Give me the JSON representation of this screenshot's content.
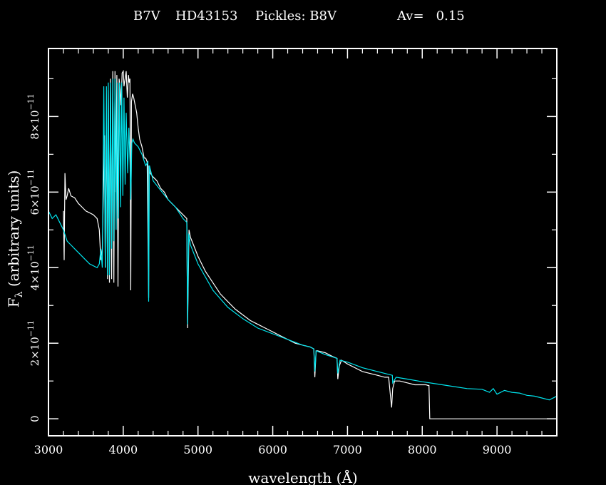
{
  "chart_data": {
    "type": "line",
    "title_parts": {
      "type": "B7V",
      "star": "HD43153",
      "pickles": "Pickles: B8V",
      "av": "Av=   0.15"
    },
    "xlabel": "wavelength (Å)",
    "ylabel_main": "F",
    "ylabel_sub": "λ",
    "ylabel_rest": " (arbitrary units)",
    "xlim": [
      3000,
      9800
    ],
    "ylim": [
      -4.5e-12,
      9.8e-11
    ],
    "x_ticks": [
      {
        "value": 3000,
        "label": "3000"
      },
      {
        "value": 4000,
        "label": "4000"
      },
      {
        "value": 5000,
        "label": "5000"
      },
      {
        "value": 6000,
        "label": "6000"
      },
      {
        "value": 7000,
        "label": "7000"
      },
      {
        "value": 8000,
        "label": "8000"
      },
      {
        "value": 9000,
        "label": "9000"
      }
    ],
    "y_ticks": [
      {
        "value": 0,
        "mantissa": "0",
        "exp": ""
      },
      {
        "value": 2e-11,
        "mantissa": "2×10",
        "exp": "−11"
      },
      {
        "value": 4e-11,
        "mantissa": "4×10",
        "exp": "−11"
      },
      {
        "value": 6e-11,
        "mantissa": "6×10",
        "exp": "−11"
      },
      {
        "value": 8e-11,
        "mantissa": "8×10",
        "exp": "−11"
      }
    ],
    "series": [
      {
        "color": "#ffffff",
        "x": [
          3200,
          3210,
          3220,
          3235,
          3250,
          3270,
          3300,
          3350,
          3400,
          3450,
          3500,
          3550,
          3600,
          3650,
          3680,
          3700,
          3720,
          3750,
          3760,
          3775,
          3790,
          3800,
          3815,
          3830,
          3845,
          3860,
          3875,
          3890,
          3900,
          3915,
          3930,
          3945,
          3960,
          3970,
          3985,
          4000,
          4010,
          4025,
          4040,
          4055,
          4070,
          4080,
          4090,
          4101,
          4110,
          4125,
          4140,
          4160,
          4180,
          4200,
          4220,
          4250,
          4280,
          4300,
          4320,
          4340,
          4345,
          4360,
          4400,
          4450,
          4500,
          4550,
          4600,
          4650,
          4700,
          4750,
          4800,
          4850,
          4861,
          4880,
          4900,
          4950,
          5000,
          5100,
          5200,
          5300,
          5400,
          5500,
          5600,
          5700,
          5800,
          5900,
          6000,
          6100,
          6200,
          6300,
          6400,
          6500,
          6550,
          6563,
          6580,
          6600,
          6700,
          6800,
          6860,
          6870,
          6890,
          6920,
          7000,
          7100,
          7200,
          7300,
          7400,
          7500,
          7550,
          7590,
          7605,
          7630,
          7700,
          7800,
          7900,
          8000,
          8050,
          8080,
          8090,
          8100,
          9000,
          9800
        ],
        "y": [
          5.5e-11,
          4.2e-11,
          6.5e-11,
          5.8e-11,
          5.9e-11,
          6.1e-11,
          5.9e-11,
          5.85e-11,
          5.7e-11,
          5.6e-11,
          5.5e-11,
          5.45e-11,
          5.4e-11,
          5.3e-11,
          5e-11,
          4.2e-11,
          4.5e-11,
          7.5e-11,
          4e-11,
          8.2e-11,
          3.7e-11,
          8.7e-11,
          3.6e-11,
          9e-11,
          3.7e-11,
          9.2e-11,
          3.6e-11,
          9.2e-11,
          6e-11,
          9.1e-11,
          3.5e-11,
          9e-11,
          8.7e-11,
          8.3e-11,
          9.15e-11,
          9.2e-11,
          8.8e-11,
          9e-11,
          9.2e-11,
          8.5e-11,
          9.1e-11,
          8.9e-11,
          9e-11,
          3.4e-11,
          8.4e-11,
          8.6e-11,
          8.5e-11,
          8.3e-11,
          8.1e-11,
          7.7e-11,
          7.4e-11,
          7.2e-11,
          6.9e-11,
          6.9e-11,
          6.8e-11,
          3.2e-11,
          6.7e-11,
          6.5e-11,
          6.4e-11,
          6.3e-11,
          6.1e-11,
          6e-11,
          5.8e-11,
          5.7e-11,
          5.6e-11,
          5.5e-11,
          5.4e-11,
          5.3e-11,
          2.4e-11,
          5e-11,
          4.8e-11,
          4.55e-11,
          4.3e-11,
          3.9e-11,
          3.6e-11,
          3.3e-11,
          3.1e-11,
          2.9e-11,
          2.75e-11,
          2.6e-11,
          2.5e-11,
          2.4e-11,
          2.3e-11,
          2.2e-11,
          2.1e-11,
          2e-11,
          1.95e-11,
          1.9e-11,
          1.85e-11,
          1.1e-11,
          1.8e-11,
          1.8e-11,
          1.75e-11,
          1.65e-11,
          1.6e-11,
          1.05e-11,
          1.4e-11,
          1.55e-11,
          1.45e-11,
          1.35e-11,
          1.25e-11,
          1.2e-11,
          1.15e-11,
          1.1e-11,
          1.1e-11,
          3e-12,
          8e-12,
          1e-11,
          1e-11,
          9.5e-12,
          9e-12,
          9e-12,
          9e-12,
          8.8e-12,
          8.8e-12,
          0.0,
          0.0,
          0.0
        ]
      },
      {
        "color": "#00e5ee",
        "x": [
          3000,
          3050,
          3100,
          3150,
          3200,
          3250,
          3300,
          3350,
          3400,
          3450,
          3500,
          3550,
          3600,
          3650,
          3680,
          3700,
          3720,
          3740,
          3760,
          3775,
          3790,
          3800,
          3815,
          3830,
          3845,
          3860,
          3875,
          3890,
          3905,
          3920,
          3935,
          3950,
          3965,
          3980,
          3995,
          4010,
          4025,
          4040,
          4060,
          4075,
          4090,
          4101,
          4115,
          4130,
          4150,
          4200,
          4250,
          4300,
          4330,
          4340,
          4350,
          4400,
          4500,
          4600,
          4700,
          4800,
          4850,
          4861,
          4875,
          4900,
          5000,
          5200,
          5400,
          5600,
          5800,
          6000,
          6200,
          6400,
          6500,
          6550,
          6563,
          6580,
          6700,
          6860,
          6870,
          6900,
          7000,
          7200,
          7400,
          7600,
          7605,
          7650,
          7800,
          8000,
          8200,
          8400,
          8600,
          8800,
          8900,
          8950,
          9000,
          9100,
          9200,
          9300,
          9400,
          9500,
          9600,
          9700,
          9800
        ],
        "y": [
          5.5e-11,
          5.3e-11,
          5.4e-11,
          5.2e-11,
          5e-11,
          4.7e-11,
          4.6e-11,
          4.5e-11,
          4.4e-11,
          4.3e-11,
          4.2e-11,
          4.1e-11,
          4.05e-11,
          4e-11,
          4.1e-11,
          4.5e-11,
          4e-11,
          8.8e-11,
          4e-11,
          8.8e-11,
          3.8e-11,
          8.9e-11,
          3.8e-11,
          8.9e-11,
          4.5e-11,
          9e-11,
          4.7e-11,
          9e-11,
          5e-11,
          8.9e-11,
          5.3e-11,
          8.9e-11,
          5.6e-11,
          8.9e-11,
          5.9e-11,
          8.5e-11,
          6.2e-11,
          8.1e-11,
          6.5e-11,
          7.7e-11,
          6.8e-11,
          5.8e-11,
          7.3e-11,
          7.4e-11,
          7.3e-11,
          7.2e-11,
          7e-11,
          6.7e-11,
          6.8e-11,
          3.1e-11,
          6.7e-11,
          6.3e-11,
          6.05e-11,
          5.8e-11,
          5.6e-11,
          5.3e-11,
          5.2e-11,
          2.5e-11,
          4.9e-11,
          4.6e-11,
          4.1e-11,
          3.4e-11,
          2.95e-11,
          2.65e-11,
          2.4e-11,
          2.25e-11,
          2.1e-11,
          1.95e-11,
          1.9e-11,
          1.85e-11,
          1.25e-11,
          1.8e-11,
          1.7e-11,
          1.6e-11,
          1.2e-11,
          1.55e-11,
          1.5e-11,
          1.35e-11,
          1.25e-11,
          1.15e-11,
          9.5e-12,
          1.1e-11,
          1.05e-11,
          9.8e-12,
          9.2e-12,
          8.6e-12,
          8e-12,
          7.8e-12,
          7e-12,
          8e-12,
          6.5e-12,
          7.5e-12,
          7e-12,
          6.8e-12,
          6.2e-12,
          6e-12,
          5.5e-12,
          5e-12,
          6e-12
        ]
      }
    ]
  }
}
